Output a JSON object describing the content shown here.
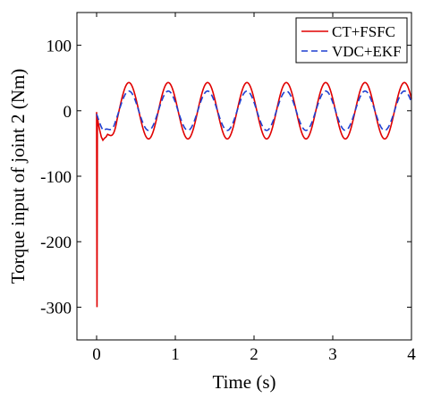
{
  "chart_data": {
    "type": "line",
    "title": "",
    "xlabel": "Time (s)",
    "ylabel": "Torque input of joint 2 (Nm)",
    "xlim": [
      -0.25,
      4
    ],
    "ylim": [
      -350,
      150
    ],
    "xticks": [
      0,
      1,
      2,
      3,
      4
    ],
    "yticks": [
      100,
      0,
      -100,
      -200,
      -300
    ],
    "grid": false,
    "legend_position": "top-right",
    "series": [
      {
        "name": "CT+FSFC",
        "color": "#e00000",
        "dash": "solid",
        "transient": {
          "t": [
            0,
            0.005,
            0.01,
            0.02,
            0.04,
            0.06,
            0.08,
            0.1,
            0.12,
            0.14
          ],
          "y": [
            -2,
            -300,
            -8,
            -18,
            -30,
            -40,
            -45,
            -42,
            -40,
            -36
          ]
        },
        "steady": {
          "amplitude": 43,
          "period": 0.5,
          "phase_zero_t": 0.285,
          "offset": 0,
          "t_end": 4
        }
      },
      {
        "name": "VDC+EKF",
        "color": "#1f3fd0",
        "dash": "dashed",
        "transient": {
          "t": [
            0,
            0.02,
            0.05,
            0.08,
            0.12
          ],
          "y": [
            -5,
            -12,
            -22,
            -30,
            -28
          ]
        },
        "steady": {
          "amplitude": 30,
          "period": 0.5,
          "phase_zero_t": 0.285,
          "offset": 0,
          "t_end": 4
        }
      }
    ]
  }
}
